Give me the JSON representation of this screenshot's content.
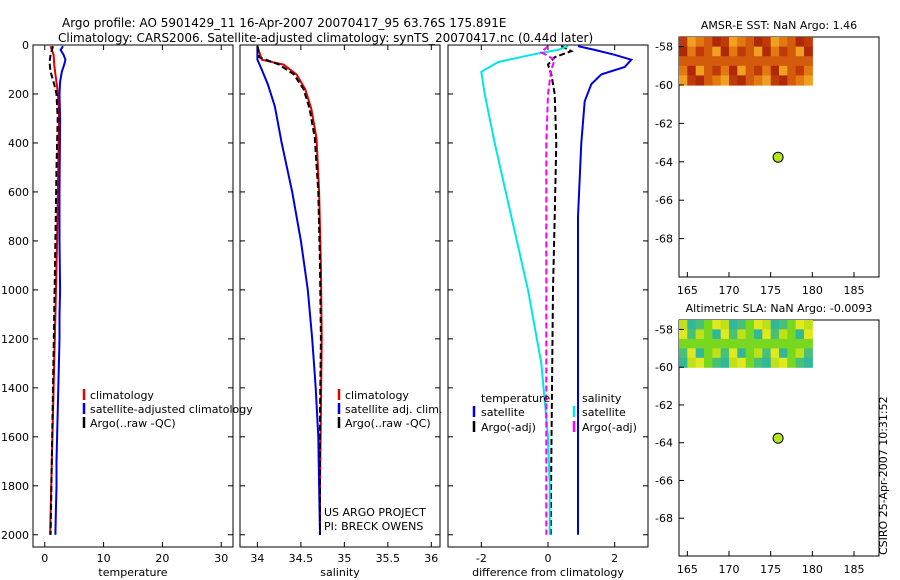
{
  "header": {
    "line1": "Argo profile: AO 5901429_11 16-Apr-2007 20070417_95 63.76S 175.891E",
    "line2": "Climatology: CARS2006. Satellite-adjusted climatology: synTS_20070417.nc (0.44d later)"
  },
  "side_note": "CSIRO 25-Apr-2007 10:31:52",
  "colors": {
    "climatology": "#e00000",
    "satellite": "#0000dd",
    "argo": "#000000",
    "temp_diff_satellite": "#00e6e6",
    "sal_diff_argo": "#ff00ff",
    "sst_map": "#d4860a",
    "sla_map": "#78d820",
    "float_marker": "#b4e61e"
  },
  "chart_data": [
    {
      "type": "line",
      "name": "temperature-panel",
      "xlabel": "temperature",
      "xlim": [
        -2,
        32
      ],
      "ylim": [
        2050,
        0
      ],
      "xticks": [
        "0",
        "10",
        "20",
        "30"
      ],
      "xtick_values": [
        0,
        10,
        20,
        30
      ],
      "yticks": [
        "0",
        "200",
        "400",
        "600",
        "800",
        "1000",
        "1200",
        "1400",
        "1600",
        "1800",
        "2000"
      ],
      "ytick_values": [
        0,
        200,
        400,
        600,
        800,
        1000,
        1200,
        1400,
        1600,
        1800,
        2000
      ],
      "legend": [
        "climatology",
        "satellite-adjusted climatology",
        "Argo(..raw -QC)"
      ],
      "series": [
        {
          "name": "climatology",
          "color": "#e00000",
          "dash": "",
          "points": [
            [
              1.0,
              5
            ],
            [
              1.5,
              40
            ],
            [
              1.6,
              80
            ],
            [
              1.8,
              120
            ],
            [
              2.1,
              170
            ],
            [
              2.35,
              230
            ],
            [
              2.4,
              300
            ],
            [
              2.3,
              500
            ],
            [
              2.1,
              800
            ],
            [
              1.8,
              1100
            ],
            [
              1.5,
              1400
            ],
            [
              1.2,
              1700
            ],
            [
              0.9,
              2000
            ]
          ]
        },
        {
          "name": "satellite-adjusted climatology",
          "color": "#0000dd",
          "dash": "",
          "points": [
            [
              3.1,
              5
            ],
            [
              2.7,
              20
            ],
            [
              3.2,
              40
            ],
            [
              3.5,
              60
            ],
            [
              3.3,
              80
            ],
            [
              2.9,
              110
            ],
            [
              2.6,
              150
            ],
            [
              2.5,
              200
            ],
            [
              2.6,
              300
            ],
            [
              2.5,
              600
            ],
            [
              2.5,
              800
            ],
            [
              2.6,
              1000
            ],
            [
              2.5,
              1100
            ],
            [
              2.5,
              1200
            ],
            [
              2.4,
              1300
            ],
            [
              2.3,
              1400
            ],
            [
              2.2,
              1500
            ],
            [
              2.1,
              1600
            ],
            [
              2.0,
              1700
            ],
            [
              2.0,
              1800
            ],
            [
              1.9,
              1900
            ],
            [
              1.8,
              2000
            ]
          ]
        },
        {
          "name": "Argo(..raw -QC)",
          "color": "#000000",
          "dash": "6,3",
          "points": [
            [
              1.4,
              5
            ],
            [
              1.0,
              40
            ],
            [
              0.8,
              70
            ],
            [
              1.0,
              110
            ],
            [
              1.6,
              160
            ],
            [
              2.0,
              200
            ],
            [
              2.2,
              300
            ],
            [
              2.0,
              500
            ],
            [
              1.8,
              800
            ],
            [
              1.6,
              1100
            ],
            [
              1.4,
              1400
            ],
            [
              1.2,
              1700
            ],
            [
              1.0,
              2000
            ]
          ]
        }
      ]
    },
    {
      "type": "line",
      "name": "salinity-panel",
      "xlabel": "salinity",
      "xlim": [
        33.8,
        36.1
      ],
      "ylim": [
        2050,
        0
      ],
      "xticks": [
        "34",
        "34.5",
        "35",
        "35.5",
        "36"
      ],
      "xtick_values": [
        34,
        34.5,
        35,
        35.5,
        36
      ],
      "yticks": [],
      "ytick_values": [],
      "legend": [
        "climatology",
        "satellite adj. clim.",
        "Argo(..raw -QC)"
      ],
      "annotations": [
        "US ARGO PROJECT",
        "PI: BRECK OWENS"
      ],
      "series": [
        {
          "name": "climatology",
          "color": "#e00000",
          "dash": "",
          "points": [
            [
              34.0,
              5
            ],
            [
              34.05,
              60
            ],
            [
              34.3,
              80
            ],
            [
              34.45,
              120
            ],
            [
              34.55,
              180
            ],
            [
              34.62,
              260
            ],
            [
              34.68,
              380
            ],
            [
              34.71,
              600
            ],
            [
              34.73,
              900
            ],
            [
              34.74,
              1200
            ],
            [
              34.73,
              1500
            ],
            [
              34.72,
              1800
            ],
            [
              34.72,
              2000
            ]
          ]
        },
        {
          "name": "satellite adj. clim.",
          "color": "#0000dd",
          "dash": "",
          "points": [
            [
              34.0,
              5
            ],
            [
              34.0,
              60
            ],
            [
              34.05,
              100
            ],
            [
              34.12,
              160
            ],
            [
              34.2,
              250
            ],
            [
              34.28,
              400
            ],
            [
              34.4,
              600
            ],
            [
              34.5,
              800
            ],
            [
              34.58,
              1000
            ],
            [
              34.63,
              1200
            ],
            [
              34.67,
              1400
            ],
            [
              34.7,
              1600
            ],
            [
              34.71,
              1800
            ],
            [
              34.72,
              2000
            ]
          ]
        },
        {
          "name": "Argo(..raw -QC)",
          "color": "#000000",
          "dash": "6,3",
          "points": [
            [
              34.0,
              5
            ],
            [
              34.02,
              50
            ],
            [
              34.25,
              80
            ],
            [
              34.42,
              120
            ],
            [
              34.53,
              180
            ],
            [
              34.6,
              260
            ],
            [
              34.66,
              380
            ],
            [
              34.7,
              600
            ],
            [
              34.72,
              900
            ],
            [
              34.73,
              1200
            ],
            [
              34.72,
              1500
            ],
            [
              34.72,
              1800
            ],
            [
              34.72,
              2000
            ]
          ]
        }
      ]
    },
    {
      "type": "line",
      "name": "difference-panel",
      "xlabel": "difference from climatology",
      "xlim": [
        -3,
        3
      ],
      "ylim": [
        2050,
        0
      ],
      "xticks": [
        "-2",
        "0",
        "2"
      ],
      "xtick_values": [
        -2,
        0,
        2
      ],
      "yticks": [],
      "ytick_values": [],
      "legend_left_title": "temperature",
      "legend_right_title": "salinity",
      "legend_left": [
        "satellite",
        "Argo(-adj)"
      ],
      "legend_right": [
        "satellite",
        "Argo(-adj)"
      ],
      "series": [
        {
          "name": "temperature satellite",
          "color": "#0000dd",
          "dash": "",
          "points": [
            [
              0.9,
              5
            ],
            [
              1.4,
              20
            ],
            [
              2.0,
              40
            ],
            [
              2.5,
              60
            ],
            [
              2.3,
              90
            ],
            [
              1.6,
              120
            ],
            [
              1.3,
              160
            ],
            [
              1.1,
              230
            ],
            [
              1.0,
              400
            ],
            [
              0.9,
              700
            ],
            [
              0.9,
              1000
            ],
            [
              0.9,
              1400
            ],
            [
              0.9,
              1700
            ],
            [
              0.9,
              2000
            ]
          ]
        },
        {
          "name": "temperature Argo(-adj)",
          "color": "#000000",
          "dash": "6,3",
          "points": [
            [
              0.4,
              5
            ],
            [
              0.7,
              25
            ],
            [
              0.2,
              50
            ],
            [
              0.0,
              80
            ],
            [
              0.1,
              120
            ],
            [
              0.2,
              200
            ],
            [
              0.25,
              400
            ],
            [
              0.2,
              700
            ],
            [
              0.15,
              1000
            ],
            [
              0.12,
              1400
            ],
            [
              0.1,
              1700
            ],
            [
              0.08,
              2000
            ]
          ]
        },
        {
          "name": "salinity satellite",
          "color": "#00e6e6",
          "dash": "",
          "points": [
            [
              0.6,
              5
            ],
            [
              0.3,
              20
            ],
            [
              -0.5,
              40
            ],
            [
              -1.5,
              70
            ],
            [
              -2.0,
              110
            ],
            [
              -1.9,
              200
            ],
            [
              -1.6,
              400
            ],
            [
              -1.1,
              700
            ],
            [
              -0.6,
              1000
            ],
            [
              -0.2,
              1300
            ],
            [
              0.0,
              1600
            ],
            [
              0.05,
              1800
            ],
            [
              0.05,
              2000
            ]
          ]
        },
        {
          "name": "salinity Argo(-adj)",
          "color": "#ff00ff",
          "dash": "6,3",
          "points": [
            [
              0.0,
              5
            ],
            [
              -0.2,
              30
            ],
            [
              0.2,
              60
            ],
            [
              0.1,
              100
            ],
            [
              0.0,
              200
            ],
            [
              -0.05,
              400
            ],
            [
              -0.05,
              700
            ],
            [
              -0.05,
              1000
            ],
            [
              -0.05,
              1400
            ],
            [
              -0.05,
              1700
            ],
            [
              -0.05,
              2000
            ]
          ]
        }
      ]
    },
    {
      "type": "heatmap",
      "name": "sst-map",
      "title": "AMSR-E SST: NaN Argo: 1.46",
      "xlim": [
        164,
        188
      ],
      "ylim": [
        -70,
        -57.5
      ],
      "xticks": [
        "165",
        "170",
        "175",
        "180",
        "185"
      ],
      "xtick_values": [
        165,
        170,
        175,
        180,
        185
      ],
      "yticks": [
        "-58",
        "-60",
        "-62",
        "-64",
        "-66",
        "-68"
      ],
      "ytick_values": [
        -58,
        -60,
        -62,
        -64,
        -66,
        -68
      ],
      "field_extent": {
        "lon": [
          164,
          180
        ],
        "lat": [
          -60,
          -57.5
        ]
      },
      "float_position": {
        "lon": 175.891,
        "lat": -63.76
      }
    },
    {
      "type": "heatmap",
      "name": "sla-map",
      "title": "Altimetric SLA: NaN Argo: -0.0093",
      "xlim": [
        164,
        188
      ],
      "ylim": [
        -70,
        -57.5
      ],
      "xticks": [
        "165",
        "170",
        "175",
        "180",
        "185"
      ],
      "xtick_values": [
        165,
        170,
        175,
        180,
        185
      ],
      "yticks": [
        "-58",
        "-60",
        "-62",
        "-64",
        "-66",
        "-68"
      ],
      "ytick_values": [
        -58,
        -60,
        -62,
        -64,
        -66,
        -68
      ],
      "field_extent": {
        "lon": [
          164,
          180
        ],
        "lat": [
          -60,
          -57.5
        ]
      },
      "float_position": {
        "lon": 175.891,
        "lat": -63.76
      }
    }
  ]
}
